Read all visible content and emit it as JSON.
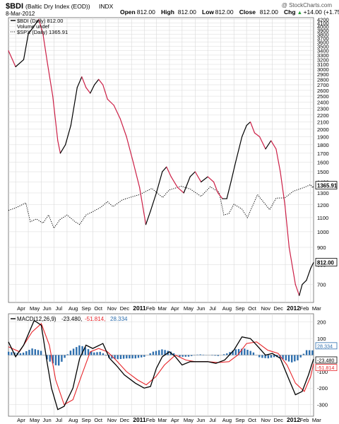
{
  "header": {
    "symbol": "$BDI",
    "name": "(Baltic Dry Index (EOD))",
    "exchange": "INDX",
    "date": "8-Mar-2012",
    "watermark": "@ StockCharts.com",
    "ohlc": [
      {
        "label": "Open",
        "value": "812.00"
      },
      {
        "label": "High",
        "value": "812.00"
      },
      {
        "label": "Low",
        "value": "812.00"
      },
      {
        "label": "Close",
        "value": "812.00"
      },
      {
        "label": "Chg",
        "value": "+14.00 (+1.75%)",
        "arrow": "▲"
      }
    ]
  },
  "legend": [
    {
      "label": "$BDI (Daily) 812.00",
      "style": "solid"
    },
    {
      "label": "Volume undef",
      "style": "none"
    },
    {
      "label": "$SPX (Daily) 1365.91",
      "style": "dotted"
    }
  ],
  "months": [
    "Apr",
    "May",
    "Jun",
    "Jul",
    "Aug",
    "Sep",
    "Oct",
    "Nov",
    "Dec",
    "2011",
    "Feb",
    "Mar",
    "Apr",
    "May",
    "Jun",
    "Jul",
    "Aug",
    "Sep",
    "Oct",
    "Nov",
    "Dec",
    "2012",
    "Feb",
    "Mar"
  ],
  "macd_panel": {
    "legend_prefix": "MACD(12,26,9)",
    "macd_value": "-23.480,",
    "signal_value": "-51.814,",
    "hist_value": "28.334",
    "value_tags": [
      "28.334",
      "-23.480",
      "-51.814"
    ]
  },
  "colors": {
    "bdi_up": "#000000",
    "bdi_down": "#cc1f46",
    "spx": "#000000",
    "macd": "#000000",
    "signal": "#e8252a",
    "histogram": "#2e6fae",
    "grid": "#d9d9d9"
  },
  "chart_data": [
    {
      "type": "line",
      "yscale": "log",
      "right_axis_ticks": [
        "700",
        "800",
        "900",
        "1000",
        "1100",
        "1200",
        "1300",
        "1400",
        "1500",
        "1600",
        "1700",
        "1800",
        "1900",
        "2000",
        "2100",
        "2200",
        "2300",
        "2400",
        "2500",
        "2600",
        "2700",
        "2800",
        "2900",
        "3000",
        "3100",
        "3200",
        "3300",
        "3400",
        "3500",
        "3600",
        "3700",
        "3800",
        "3900",
        "4000",
        "4100",
        "4200"
      ],
      "ylim": [
        620,
        4250
      ],
      "x_range": [
        "2010-03-15",
        "2012-03-08"
      ],
      "price_tags": [
        "1365.91",
        "812.00"
      ],
      "series": [
        {
          "name": "$BDI (Daily) 812.00",
          "points": [
            [
              "2010-03-15",
              3400
            ],
            [
              "2010-04-01",
              3050
            ],
            [
              "2010-04-20",
              3200
            ],
            [
              "2010-05-01",
              3800
            ],
            [
              "2010-05-26",
              4200
            ],
            [
              "2010-06-05",
              3800
            ],
            [
              "2010-06-15",
              3150
            ],
            [
              "2010-06-28",
              2500
            ],
            [
              "2010-07-10",
              1850
            ],
            [
              "2010-07-16",
              1700
            ],
            [
              "2010-07-28",
              1800
            ],
            [
              "2010-08-10",
              2050
            ],
            [
              "2010-08-25",
              2650
            ],
            [
              "2010-09-05",
              2850
            ],
            [
              "2010-09-15",
              2650
            ],
            [
              "2010-09-25",
              2550
            ],
            [
              "2010-10-05",
              2700
            ],
            [
              "2010-10-15",
              2800
            ],
            [
              "2010-10-25",
              2700
            ],
            [
              "2010-11-05",
              2450
            ],
            [
              "2010-11-20",
              2350
            ],
            [
              "2010-12-05",
              2150
            ],
            [
              "2010-12-20",
              1900
            ],
            [
              "2011-01-05",
              1600
            ],
            [
              "2011-01-20",
              1350
            ],
            [
              "2011-02-04",
              1050
            ],
            [
              "2011-02-15",
              1150
            ],
            [
              "2011-03-01",
              1300
            ],
            [
              "2011-03-15",
              1500
            ],
            [
              "2011-03-25",
              1550
            ],
            [
              "2011-04-05",
              1450
            ],
            [
              "2011-04-20",
              1350
            ],
            [
              "2011-05-05",
              1300
            ],
            [
              "2011-05-20",
              1450
            ],
            [
              "2011-06-01",
              1500
            ],
            [
              "2011-06-15",
              1400
            ],
            [
              "2011-07-01",
              1450
            ],
            [
              "2011-07-15",
              1400
            ],
            [
              "2011-07-25",
              1300
            ],
            [
              "2011-08-05",
              1250
            ],
            [
              "2011-08-15",
              1250
            ],
            [
              "2011-08-25",
              1400
            ],
            [
              "2011-09-05",
              1600
            ],
            [
              "2011-09-20",
              1900
            ],
            [
              "2011-10-01",
              2050
            ],
            [
              "2011-10-10",
              2100
            ],
            [
              "2011-10-20",
              1950
            ],
            [
              "2011-11-01",
              1900
            ],
            [
              "2011-11-15",
              1750
            ],
            [
              "2011-11-28",
              1850
            ],
            [
              "2011-12-10",
              1750
            ],
            [
              "2011-12-20",
              1500
            ],
            [
              "2011-12-31",
              1200
            ],
            [
              "2012-01-10",
              900
            ],
            [
              "2012-01-25",
              700
            ],
            [
              "2012-02-03",
              650
            ],
            [
              "2012-02-10",
              700
            ],
            [
              "2012-02-20",
              720
            ],
            [
              "2012-03-01",
              780
            ],
            [
              "2012-03-08",
              812
            ]
          ]
        },
        {
          "name": "$SPX (Daily) 1365.91",
          "points": [
            [
              "2010-03-15",
              1155
            ],
            [
              "2010-04-01",
              1175
            ],
            [
              "2010-04-25",
              1215
            ],
            [
              "2010-05-06",
              1070
            ],
            [
              "2010-05-20",
              1090
            ],
            [
              "2010-06-05",
              1060
            ],
            [
              "2010-06-18",
              1120
            ],
            [
              "2010-07-01",
              1025
            ],
            [
              "2010-07-15",
              1085
            ],
            [
              "2010-08-01",
              1120
            ],
            [
              "2010-08-20",
              1070
            ],
            [
              "2010-08-31",
              1050
            ],
            [
              "2010-09-15",
              1120
            ],
            [
              "2010-10-01",
              1145
            ],
            [
              "2010-10-20",
              1180
            ],
            [
              "2010-11-05",
              1225
            ],
            [
              "2010-11-18",
              1185
            ],
            [
              "2010-12-10",
              1240
            ],
            [
              "2011-01-01",
              1265
            ],
            [
              "2011-01-20",
              1285
            ],
            [
              "2011-02-18",
              1340
            ],
            [
              "2011-03-16",
              1260
            ],
            [
              "2011-03-31",
              1325
            ],
            [
              "2011-04-29",
              1360
            ],
            [
              "2011-05-20",
              1335
            ],
            [
              "2011-06-15",
              1270
            ],
            [
              "2011-07-07",
              1355
            ],
            [
              "2011-07-28",
              1305
            ],
            [
              "2011-08-08",
              1120
            ],
            [
              "2011-08-20",
              1130
            ],
            [
              "2011-09-01",
              1205
            ],
            [
              "2011-09-20",
              1165
            ],
            [
              "2011-10-03",
              1100
            ],
            [
              "2011-10-27",
              1285
            ],
            [
              "2011-11-25",
              1160
            ],
            [
              "2011-12-10",
              1255
            ],
            [
              "2011-12-31",
              1258
            ],
            [
              "2012-01-20",
              1315
            ],
            [
              "2012-02-15",
              1350
            ],
            [
              "2012-03-01",
              1375
            ],
            [
              "2012-03-06",
              1345
            ],
            [
              "2012-03-08",
              1366
            ]
          ]
        }
      ]
    },
    {
      "type": "line",
      "ylim": [
        -370,
        250
      ],
      "right_axis_ticks": [
        "200",
        "100",
        "-100",
        "-200",
        "-300"
      ],
      "series": [
        {
          "name": "MACD(12,26,9)",
          "points": [
            [
              "2010-03-15",
              80
            ],
            [
              "2010-04-01",
              -10
            ],
            [
              "2010-04-20",
              60
            ],
            [
              "2010-05-15",
              210
            ],
            [
              "2010-06-01",
              180
            ],
            [
              "2010-06-15",
              -50
            ],
            [
              "2010-06-25",
              -200
            ],
            [
              "2010-07-10",
              -330
            ],
            [
              "2010-07-25",
              -310
            ],
            [
              "2010-08-15",
              -200
            ],
            [
              "2010-08-31",
              -20
            ],
            [
              "2010-09-15",
              60
            ],
            [
              "2010-10-01",
              40
            ],
            [
              "2010-10-25",
              70
            ],
            [
              "2010-11-10",
              -20
            ],
            [
              "2010-11-25",
              -60
            ],
            [
              "2010-12-15",
              -120
            ],
            [
              "2011-01-10",
              -170
            ],
            [
              "2011-01-31",
              -200
            ],
            [
              "2011-02-15",
              -190
            ],
            [
              "2011-03-01",
              -80
            ],
            [
              "2011-03-15",
              -10
            ],
            [
              "2011-04-01",
              20
            ],
            [
              "2011-04-15",
              -10
            ],
            [
              "2011-05-01",
              -60
            ],
            [
              "2011-05-20",
              -40
            ],
            [
              "2011-06-10",
              -40
            ],
            [
              "2011-07-01",
              -40
            ],
            [
              "2011-07-20",
              -50
            ],
            [
              "2011-08-10",
              -30
            ],
            [
              "2011-09-01",
              30
            ],
            [
              "2011-09-20",
              110
            ],
            [
              "2011-10-10",
              100
            ],
            [
              "2011-10-25",
              60
            ],
            [
              "2011-11-15",
              0
            ],
            [
              "2011-12-01",
              10
            ],
            [
              "2011-12-20",
              -20
            ],
            [
              "2012-01-10",
              -150
            ],
            [
              "2012-01-25",
              -240
            ],
            [
              "2012-02-10",
              -220
            ],
            [
              "2012-02-25",
              -120
            ],
            [
              "2012-03-08",
              -23.48
            ]
          ]
        },
        {
          "name": "Signal",
          "points": [
            [
              "2010-03-15",
              50
            ],
            [
              "2010-04-10",
              20
            ],
            [
              "2010-05-10",
              140
            ],
            [
              "2010-06-01",
              190
            ],
            [
              "2010-06-20",
              60
            ],
            [
              "2010-07-05",
              -150
            ],
            [
              "2010-07-25",
              -300
            ],
            [
              "2010-08-15",
              -270
            ],
            [
              "2010-09-05",
              -120
            ],
            [
              "2010-09-25",
              20
            ],
            [
              "2010-10-15",
              40
            ],
            [
              "2010-11-05",
              20
            ],
            [
              "2010-11-25",
              -30
            ],
            [
              "2010-12-20",
              -100
            ],
            [
              "2011-01-15",
              -150
            ],
            [
              "2011-02-05",
              -180
            ],
            [
              "2011-02-28",
              -130
            ],
            [
              "2011-03-20",
              -60
            ],
            [
              "2011-04-15",
              0
            ],
            [
              "2011-05-10",
              -30
            ],
            [
              "2011-06-01",
              -40
            ],
            [
              "2011-07-01",
              -40
            ],
            [
              "2011-07-25",
              -45
            ],
            [
              "2011-08-20",
              -40
            ],
            [
              "2011-09-10",
              0
            ],
            [
              "2011-10-01",
              70
            ],
            [
              "2011-10-25",
              80
            ],
            [
              "2011-11-20",
              30
            ],
            [
              "2011-12-15",
              10
            ],
            [
              "2012-01-05",
              -60
            ],
            [
              "2012-01-25",
              -170
            ],
            [
              "2012-02-15",
              -220
            ],
            [
              "2012-03-01",
              -130
            ],
            [
              "2012-03-08",
              -51.814
            ]
          ]
        },
        {
          "name": "Histogram",
          "points": [
            [
              "2010-03-15",
              20
            ],
            [
              "2010-04-15",
              10
            ],
            [
              "2010-05-10",
              40
            ],
            [
              "2010-06-01",
              25
            ],
            [
              "2010-06-15",
              -30
            ],
            [
              "2010-06-28",
              -50
            ],
            [
              "2010-07-10",
              -70
            ],
            [
              "2010-07-25",
              -20
            ],
            [
              "2010-08-10",
              30
            ],
            [
              "2010-08-31",
              60
            ],
            [
              "2010-09-15",
              45
            ],
            [
              "2010-10-01",
              15
            ],
            [
              "2010-10-20",
              20
            ],
            [
              "2010-11-10",
              -20
            ],
            [
              "2010-12-01",
              -25
            ],
            [
              "2010-12-20",
              -20
            ],
            [
              "2011-01-10",
              -20
            ],
            [
              "2011-02-01",
              -10
            ],
            [
              "2011-02-20",
              20
            ],
            [
              "2011-03-15",
              35
            ],
            [
              "2011-04-05",
              20
            ],
            [
              "2011-04-25",
              -10
            ],
            [
              "2011-05-15",
              -10
            ],
            [
              "2011-06-10",
              5
            ],
            [
              "2011-07-01",
              0
            ],
            [
              "2011-07-25",
              -5
            ],
            [
              "2011-08-15",
              10
            ],
            [
              "2011-09-05",
              35
            ],
            [
              "2011-09-25",
              40
            ],
            [
              "2011-10-15",
              20
            ],
            [
              "2011-11-01",
              -15
            ],
            [
              "2011-11-20",
              -20
            ],
            [
              "2011-12-10",
              -10
            ],
            [
              "2011-12-31",
              -30
            ],
            [
              "2012-01-15",
              -45
            ],
            [
              "2012-02-01",
              -30
            ],
            [
              "2012-02-20",
              30
            ],
            [
              "2012-03-08",
              28.334
            ]
          ]
        }
      ]
    }
  ]
}
